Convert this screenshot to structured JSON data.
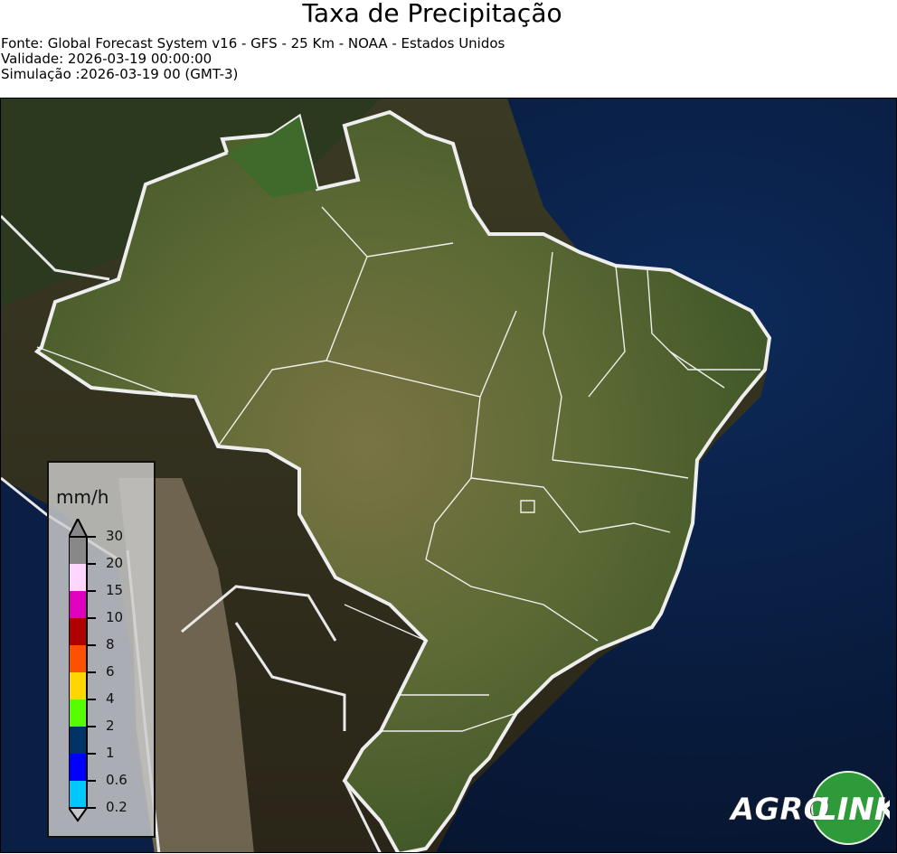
{
  "header": {
    "title": "Taxa de Precipitação",
    "source": "Fonte: Global Forecast System v16 - GFS - 25 Km - NOAA - Estados Unidos",
    "validity": "Validade: 2026-03-19 00:00:00",
    "simulation": "Simulação :2026-03-19 00 (GMT-3)"
  },
  "map": {
    "region": "Brasil",
    "basemap": "satellite imagery",
    "border_color": "#ffffff"
  },
  "legend": {
    "unit": "mm/h",
    "ticks": [
      "30",
      "20",
      "15",
      "10",
      "8",
      "6",
      "4",
      "2",
      "1",
      "0.6",
      "0.2"
    ],
    "bins": [
      {
        "from": 20,
        "to": 30,
        "color": "#888888"
      },
      {
        "from": 15,
        "to": 20,
        "color": "#ffd6ff"
      },
      {
        "from": 10,
        "to": 15,
        "color": "#e000c0"
      },
      {
        "from": 8,
        "to": 10,
        "color": "#b00000"
      },
      {
        "from": 6,
        "to": 8,
        "color": "#ff5000"
      },
      {
        "from": 4,
        "to": 6,
        "color": "#ffd500"
      },
      {
        "from": 2,
        "to": 4,
        "color": "#55ff00"
      },
      {
        "from": 1,
        "to": 2,
        "color": "#003366"
      },
      {
        "from": 0.6,
        "to": 1,
        "color": "#0000ff"
      },
      {
        "from": 0.2,
        "to": 0.6,
        "color": "#00c8ff"
      }
    ],
    "extend_max_color": "#888888",
    "extend_min_color": "#c8c8c8"
  },
  "logo": {
    "text_left": "AGRO",
    "text_right": "LINK",
    "color": "#2e9a3a"
  }
}
